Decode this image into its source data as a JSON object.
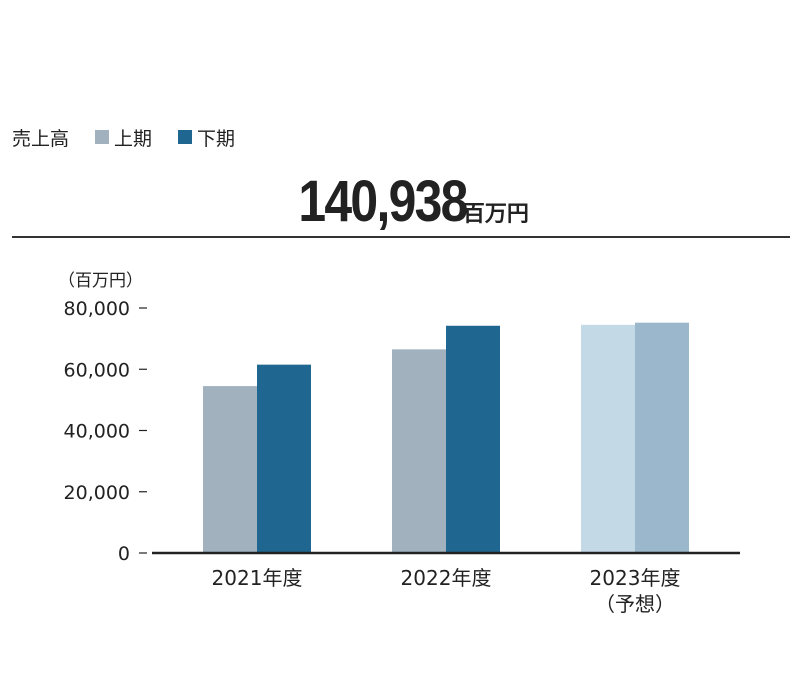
{
  "legend": {
    "title": "売上高",
    "items": [
      {
        "label": "上期",
        "color": "#a1b1be"
      },
      {
        "label": "下期",
        "color": "#1f6690"
      }
    ]
  },
  "headline": {
    "value": "140,938",
    "unit": "百万円"
  },
  "chart_data": {
    "type": "bar",
    "unit_label": "（百万円）",
    "categories": [
      {
        "line1": "2021年度",
        "line2": ""
      },
      {
        "line1": "2022年度",
        "line2": ""
      },
      {
        "line1": "2023年度",
        "line2": "（予想）"
      }
    ],
    "series": [
      {
        "name": "上期",
        "values": [
          54500,
          66500,
          74500
        ],
        "colors": [
          "#a1b1be",
          "#a1b1be",
          "#c4d9e6"
        ]
      },
      {
        "name": "下期",
        "values": [
          61500,
          74200,
          75200
        ],
        "colors": [
          "#1f6690",
          "#1f6690",
          "#9ab7cb"
        ]
      }
    ],
    "yticks": [
      0,
      20000,
      40000,
      60000,
      80000
    ],
    "ytick_labels": [
      "0",
      "20,000",
      "40,000",
      "60,000",
      "80,000"
    ],
    "ylim": [
      0,
      80000
    ],
    "grid": false
  }
}
